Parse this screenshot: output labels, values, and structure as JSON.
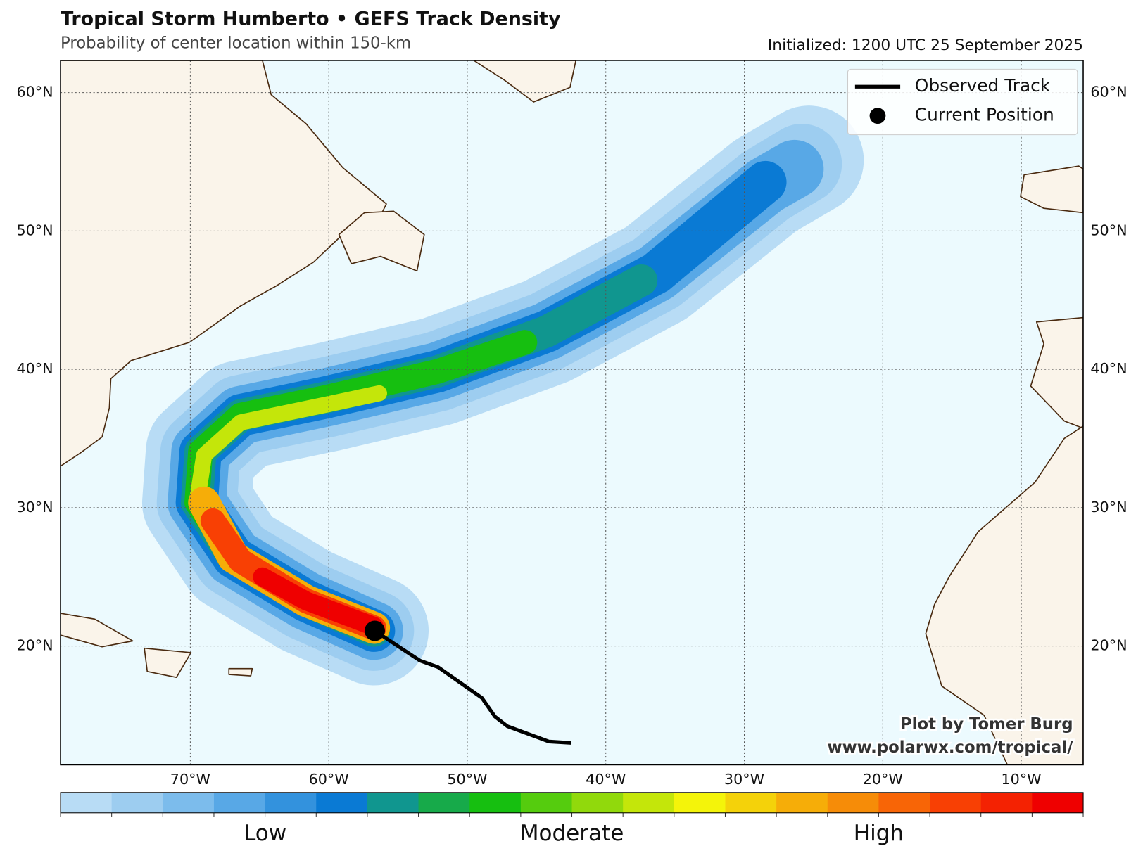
{
  "chart_data": {
    "type": "map",
    "title": "Tropical Storm Humberto • GEFS Track Density",
    "subtitle": "Probability of center location within 150-km",
    "initialized": "Initialized: 1200 UTC 25 September 2025",
    "xlim": [
      -79.37,
      -5.53
    ],
    "ylim": [
      11.42,
      62.32
    ],
    "xticks": [
      {
        "value": -70,
        "label": "70°W"
      },
      {
        "value": -60,
        "label": "60°W"
      },
      {
        "value": -50,
        "label": "50°W"
      },
      {
        "value": -40,
        "label": "40°W"
      },
      {
        "value": -30,
        "label": "30°W"
      },
      {
        "value": -20,
        "label": "20°W"
      },
      {
        "value": -10,
        "label": "10°W"
      }
    ],
    "yticks": [
      {
        "value": 20,
        "label": "20°N"
      },
      {
        "value": 30,
        "label": "30°N"
      },
      {
        "value": 40,
        "label": "40°N"
      },
      {
        "value": 50,
        "label": "50°N"
      },
      {
        "value": 60,
        "label": "60°N"
      }
    ],
    "grid": true,
    "legend_position": "upper right",
    "series": [
      {
        "name": "Observed Track",
        "color": "#000000",
        "lon": [
          -56.68,
          -53.42,
          -52.1,
          -48.95,
          -48.0,
          -47.1,
          -44.1,
          -42.5
        ],
        "lat": [
          21.1,
          18.95,
          18.47,
          16.26,
          14.9,
          14.2,
          13.1,
          13.0
        ]
      },
      {
        "name": "Current Position",
        "color": "#000000",
        "lon": [
          -56.68
        ],
        "lat": [
          21.1
        ]
      }
    ],
    "colorbar": {
      "colors": [
        "#b8dcf5",
        "#9dcdf0",
        "#7cbcec",
        "#58a8e6",
        "#3392dd",
        "#0a7ad4",
        "#10968f",
        "#17aa4a",
        "#16bf10",
        "#55cc0e",
        "#91d90c",
        "#c4e60a",
        "#f4f40a",
        "#f4d20a",
        "#f6ad08",
        "#f68c08",
        "#f86506",
        "#f84004",
        "#f42202",
        "#ef0000"
      ],
      "labels": [
        "Low",
        "Moderate",
        "High"
      ]
    },
    "credit": [
      "Plot by Tomer Burg",
      "www.polarwx.com/tropical/"
    ]
  }
}
